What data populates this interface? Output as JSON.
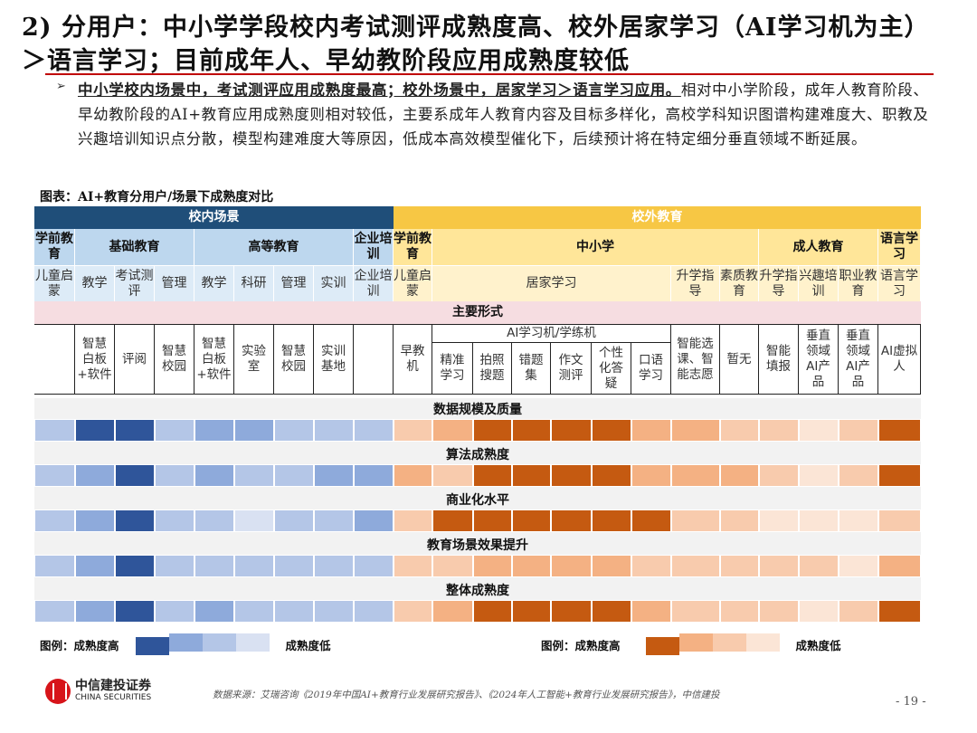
{
  "title": "2) 分用户：中小学学段校内考试测评成熟度高、校外居家学习（AI学习机为主）＞语言学习；目前成年人、早幼教阶段应用成熟度较低",
  "paragraph": {
    "highlight": "中小学校内场景中，考试测评应用成熟度最高；校外场景中，居家学习＞语言学习应用。",
    "body": "相对中小学阶段，成年人教育阶段、早幼教阶段的AI+教育应用成熟度则相对较低，主要系成年人教育内容及目标多样化，高校学科知识图谱构建难度大、职教及兴趣培训知识点分散，模型构建难度大等原因，低成本高效模型催化下，后续预计将在特定细分垂直领域不断延展。"
  },
  "figure_caption": "图表：AI+教育分用户/场景下成熟度对比",
  "table": {
    "group_in": "校内场景",
    "group_out": "校外教育",
    "level2_in": [
      "学前教育",
      "基础教育",
      "高等教育",
      "企业培训"
    ],
    "level2_out": [
      "学前教育",
      "中小学",
      "成人教育",
      "语言学习"
    ],
    "level3_in": [
      "儿童启蒙",
      "教学",
      "考试测评",
      "管理",
      "教学",
      "科研",
      "管理",
      "实训",
      "企业培训"
    ],
    "level3_out": [
      "儿童启蒙",
      "居家学习",
      "升学指导",
      "素质教育",
      "升学指导",
      "兴趣培训",
      "职业教育",
      "语言学习"
    ],
    "main_forms_label": "主要形式",
    "forms_in": [
      "",
      "智慧白板+软件",
      "评阅",
      "智慧校园",
      "智慧白板+软件",
      "实验室",
      "智慧校园",
      "实训基地",
      ""
    ],
    "forms_out_group": "AI学习机/学练机",
    "forms_out": [
      "早教机",
      "精准学习",
      "拍照搜题",
      "错题集",
      "作文测评",
      "个性化答疑",
      "口语学习",
      "智能选课、智能志愿",
      "暂无",
      "智能填报",
      "垂直领域AI产品",
      "垂直领域AI产品",
      "AI虚拟人"
    ]
  },
  "chart_data": {
    "type": "heatmap",
    "scale": "maturity level 1 (low) – 4 (high)",
    "colors_in": [
      "#d9e1f2",
      "#b4c6e7",
      "#8eaadb",
      "#2f559a"
    ],
    "colors_out": [
      "#fbe5d6",
      "#f8cbad",
      "#f4b183",
      "#c55a11"
    ],
    "rows": [
      {
        "label": "数据规模及质量",
        "in": [
          2,
          4,
          4,
          2,
          3,
          3,
          2,
          2,
          2
        ],
        "out": [
          2,
          3,
          4,
          4,
          4,
          4,
          3,
          3,
          2,
          2,
          1,
          2,
          4
        ]
      },
      {
        "label": "算法成熟度",
        "in": [
          2,
          3,
          4,
          2,
          3,
          2,
          2,
          3,
          3
        ],
        "out": [
          3,
          2,
          4,
          4,
          4,
          4,
          3,
          3,
          3,
          2,
          1,
          2,
          4
        ]
      },
      {
        "label": "商业化水平",
        "in": [
          2,
          3,
          4,
          2,
          2,
          1,
          2,
          2,
          3
        ],
        "out": [
          2,
          4,
          4,
          4,
          4,
          4,
          4,
          2,
          2,
          1,
          1,
          1,
          2
        ]
      },
      {
        "label": "教育场景效果提升",
        "in": [
          2,
          3,
          4,
          2,
          2,
          2,
          2,
          2,
          2
        ],
        "out": [
          2,
          2,
          3,
          3,
          3,
          3,
          2,
          2,
          2,
          2,
          2,
          1,
          3
        ]
      },
      {
        "label": "整体成熟度",
        "in": [
          2,
          3,
          4,
          2,
          3,
          2,
          2,
          2,
          2
        ],
        "out": [
          2,
          3,
          4,
          4,
          4,
          4,
          3,
          2,
          2,
          2,
          1,
          2,
          4
        ]
      }
    ]
  },
  "legend": {
    "prefix": "图例：成熟度高",
    "suffix": "成熟度低"
  },
  "footer": {
    "logo_cn": "中信建投证券",
    "logo_en": "CHINA SECURITIES",
    "source": "数据来源：艾瑞咨询《2019年中国AI+教育行业发展研究报告》、《2024年人工智能+教育行业发展研究报告》，中信建投",
    "page": "- 19 -"
  }
}
